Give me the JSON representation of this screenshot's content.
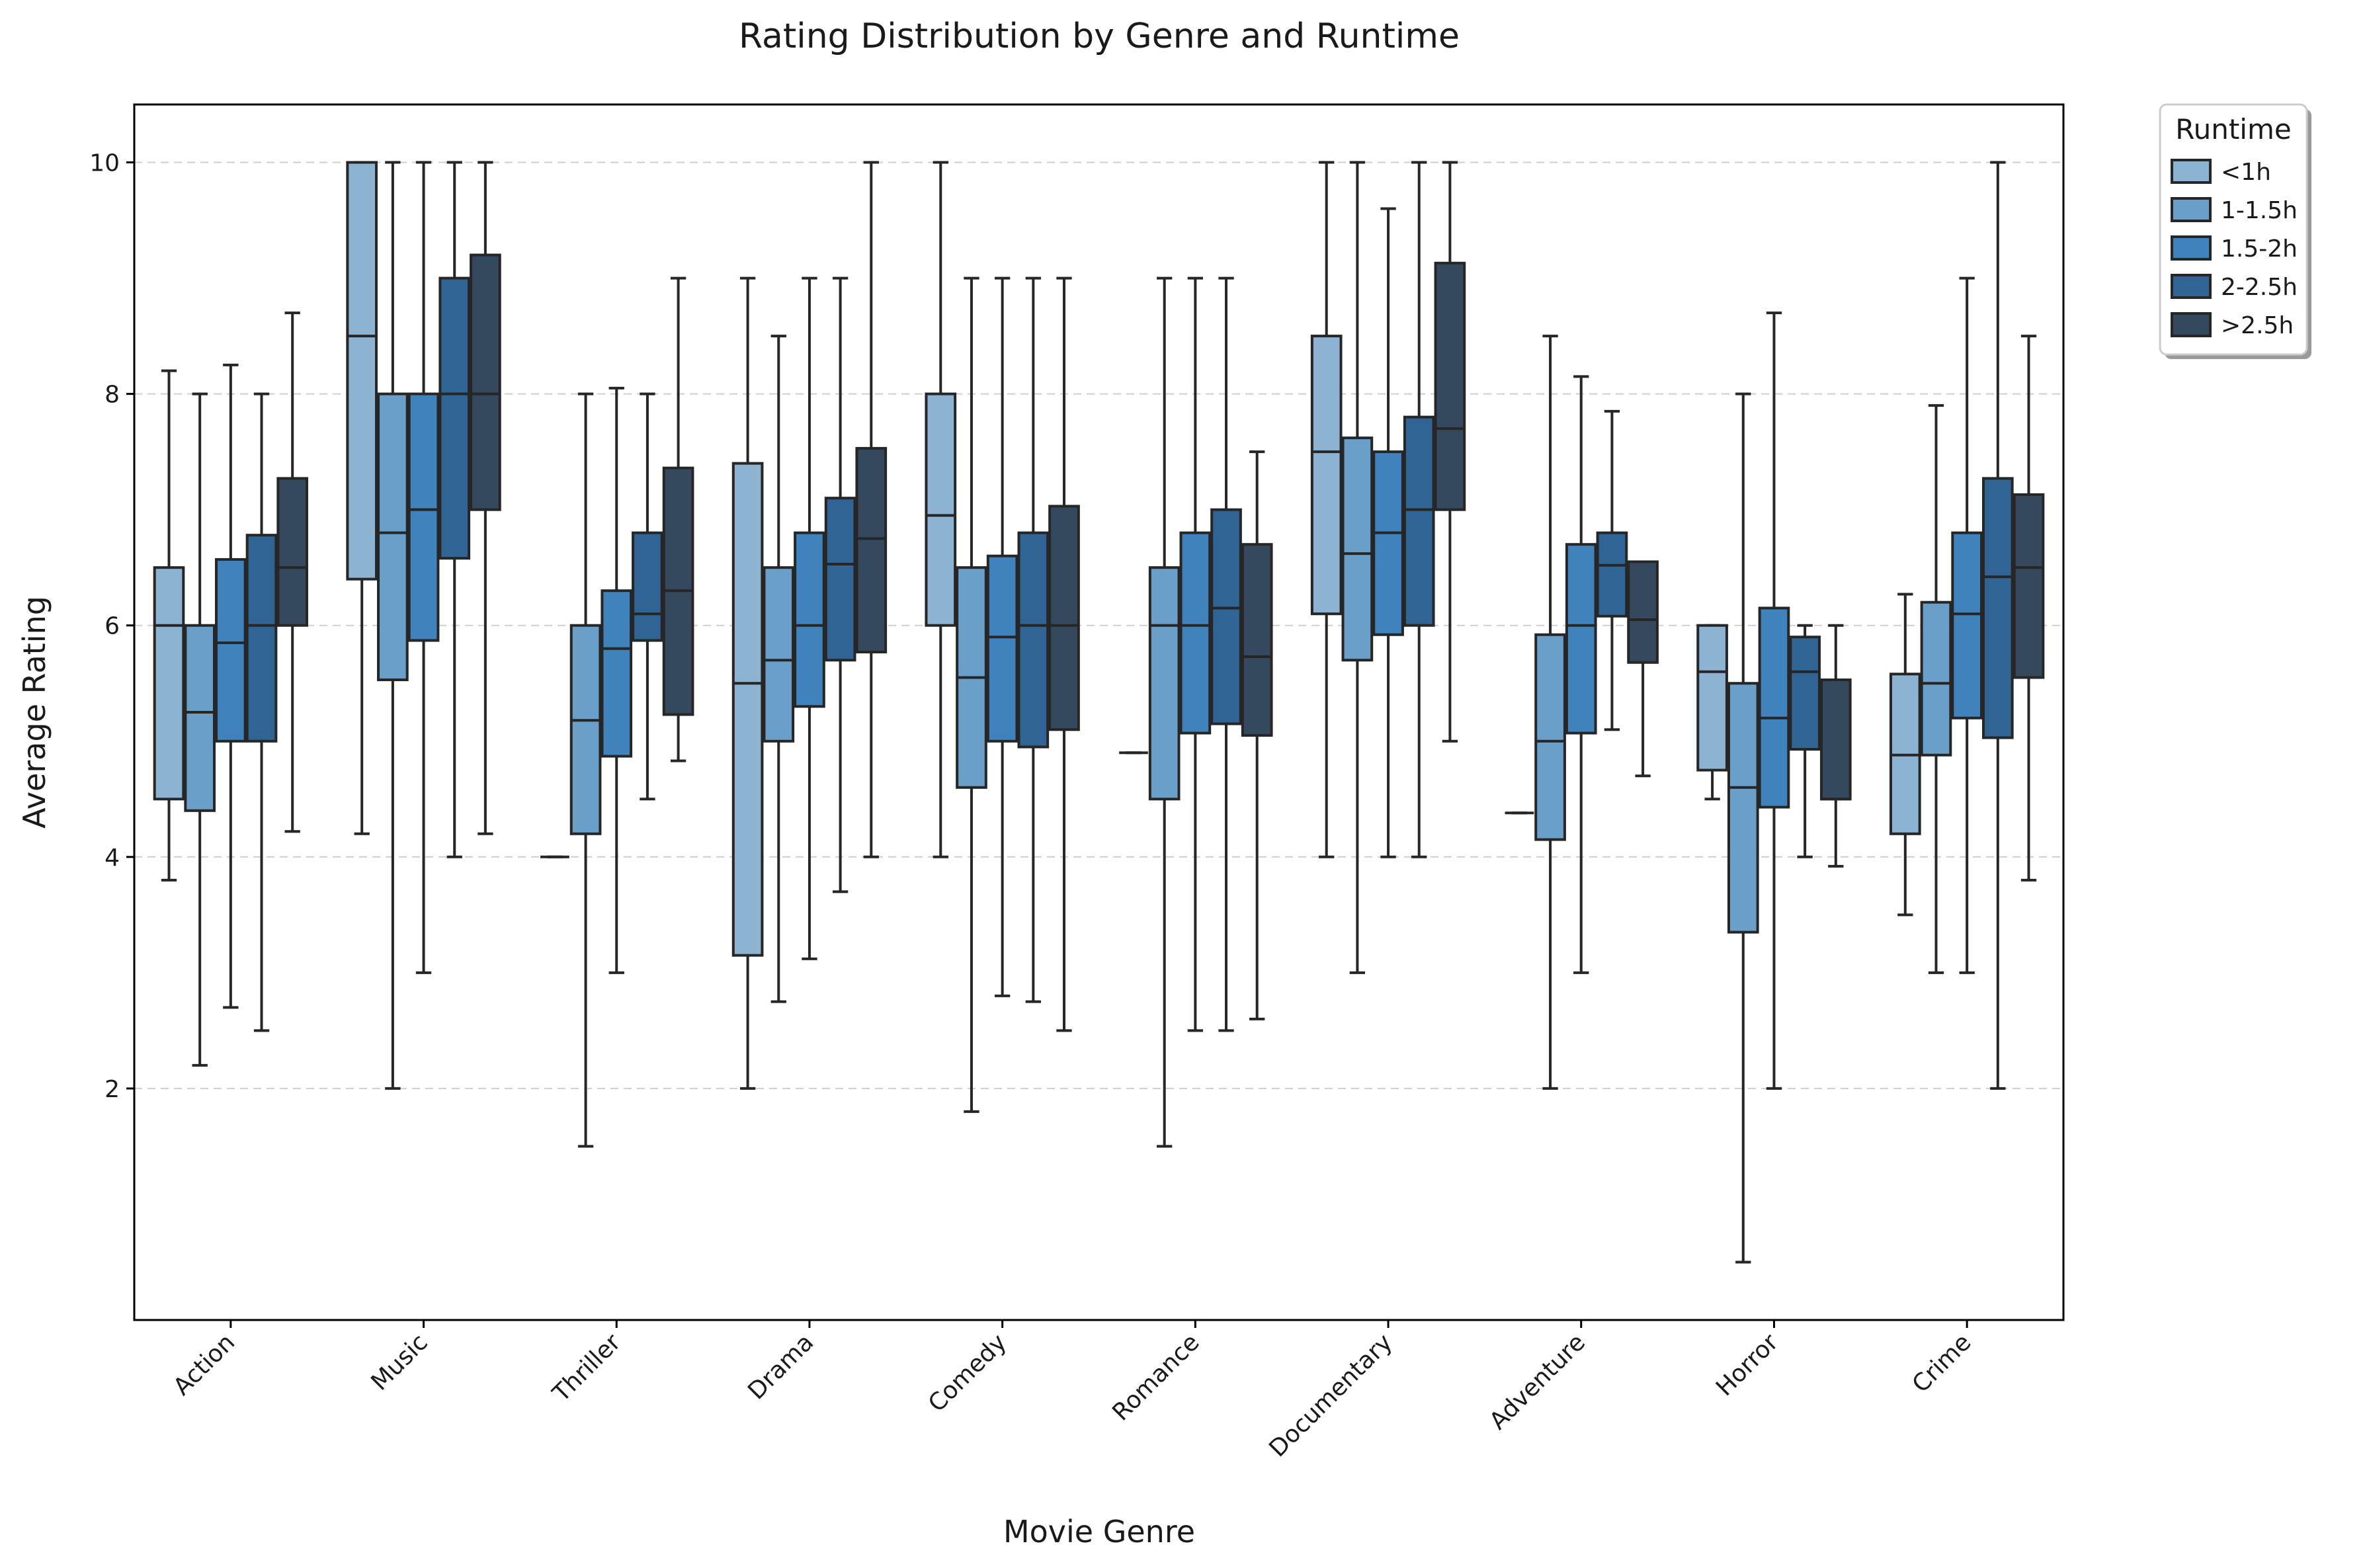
{
  "chart_data": {
    "type": "boxplot",
    "title": "Rating Distribution by Genre and Runtime",
    "xlabel": "Movie Genre",
    "ylabel": "Average Rating",
    "ylim": [
      0,
      10.5
    ],
    "yticks": [
      2,
      4,
      6,
      8,
      10
    ],
    "grid": "y-dashed",
    "legend": {
      "title": "Runtime",
      "placement": "outside-top-right"
    },
    "categories": [
      "Action",
      "Music",
      "Thriller",
      "Drama",
      "Comedy",
      "Romance",
      "Documentary",
      "Adventure",
      "Horror",
      "Crime"
    ],
    "series": [
      {
        "name": "<1h",
        "color": "#8db3d3",
        "boxes": [
          {
            "whislo": 3.8,
            "q1": 4.5,
            "med": 6.0,
            "q3": 6.5,
            "whishi": 8.2
          },
          {
            "whislo": 4.2,
            "q1": 6.4,
            "med": 8.5,
            "q3": 10.0,
            "whishi": 10.0
          },
          {
            "whislo": 4.0,
            "q1": 4.0,
            "med": 4.0,
            "q3": 4.0,
            "whishi": 4.0
          },
          {
            "whislo": 2.0,
            "q1": 3.15,
            "med": 5.5,
            "q3": 7.4,
            "whishi": 9.0
          },
          {
            "whislo": 4.0,
            "q1": 6.0,
            "med": 6.95,
            "q3": 8.0,
            "whishi": 10.0
          },
          {
            "whislo": 4.9,
            "q1": 4.9,
            "med": 4.9,
            "q3": 4.9,
            "whishi": 4.9
          },
          {
            "whislo": 4.0,
            "q1": 6.1,
            "med": 7.5,
            "q3": 8.5,
            "whishi": 10.0
          },
          {
            "whislo": 4.38,
            "q1": 4.38,
            "med": 4.38,
            "q3": 4.38,
            "whishi": 4.38
          },
          {
            "whislo": 4.5,
            "q1": 4.75,
            "med": 5.6,
            "q3": 6.0,
            "whishi": 6.0
          },
          {
            "whislo": 3.5,
            "q1": 4.2,
            "med": 4.88,
            "q3": 5.58,
            "whishi": 6.27
          }
        ]
      },
      {
        "name": "1-1.5h",
        "color": "#6a9fca",
        "boxes": [
          {
            "whislo": 2.2,
            "q1": 4.4,
            "med": 5.25,
            "q3": 6.0,
            "whishi": 8.0
          },
          {
            "whislo": 2.0,
            "q1": 5.53,
            "med": 6.8,
            "q3": 8.0,
            "whishi": 10.0
          },
          {
            "whislo": 1.5,
            "q1": 4.2,
            "med": 5.18,
            "q3": 6.0,
            "whishi": 8.0
          },
          {
            "whislo": 2.75,
            "q1": 5.0,
            "med": 5.7,
            "q3": 6.5,
            "whishi": 8.5
          },
          {
            "whislo": 1.8,
            "q1": 4.6,
            "med": 5.55,
            "q3": 6.5,
            "whishi": 9.0
          },
          {
            "whislo": 1.5,
            "q1": 4.5,
            "med": 6.0,
            "q3": 6.5,
            "whishi": 9.0
          },
          {
            "whislo": 3.0,
            "q1": 5.7,
            "med": 6.62,
            "q3": 7.62,
            "whishi": 10.0
          },
          {
            "whislo": 2.0,
            "q1": 4.15,
            "med": 5.0,
            "q3": 5.92,
            "whishi": 8.5
          },
          {
            "whislo": 0.5,
            "q1": 3.35,
            "med": 4.6,
            "q3": 5.5,
            "whishi": 8.0
          },
          {
            "whislo": 3.0,
            "q1": 4.88,
            "med": 5.5,
            "q3": 6.2,
            "whishi": 7.9
          }
        ]
      },
      {
        "name": "1.5-2h",
        "color": "#3f82bc",
        "boxes": [
          {
            "whislo": 2.7,
            "q1": 5.0,
            "med": 5.85,
            "q3": 6.57,
            "whishi": 8.25
          },
          {
            "whislo": 3.0,
            "q1": 5.87,
            "med": 7.0,
            "q3": 8.0,
            "whishi": 10.0
          },
          {
            "whislo": 3.0,
            "q1": 4.87,
            "med": 5.8,
            "q3": 6.3,
            "whishi": 8.05
          },
          {
            "whislo": 3.12,
            "q1": 5.3,
            "med": 6.0,
            "q3": 6.8,
            "whishi": 9.0
          },
          {
            "whislo": 2.8,
            "q1": 5.0,
            "med": 5.9,
            "q3": 6.6,
            "whishi": 9.0
          },
          {
            "whislo": 2.5,
            "q1": 5.07,
            "med": 6.0,
            "q3": 6.8,
            "whishi": 9.0
          },
          {
            "whislo": 4.0,
            "q1": 5.92,
            "med": 6.8,
            "q3": 7.5,
            "whishi": 9.6
          },
          {
            "whislo": 3.0,
            "q1": 5.07,
            "med": 6.0,
            "q3": 6.7,
            "whishi": 8.15
          },
          {
            "whislo": 2.0,
            "q1": 4.43,
            "med": 5.2,
            "q3": 6.15,
            "whishi": 8.7
          },
          {
            "whislo": 3.0,
            "q1": 5.2,
            "med": 6.1,
            "q3": 6.8,
            "whishi": 9.0
          }
        ]
      },
      {
        "name": "2-2.5h",
        "color": "#2f6494",
        "boxes": [
          {
            "whislo": 2.5,
            "q1": 5.0,
            "med": 6.0,
            "q3": 6.78,
            "whishi": 8.0
          },
          {
            "whislo": 4.0,
            "q1": 6.58,
            "med": 8.0,
            "q3": 9.0,
            "whishi": 10.0
          },
          {
            "whislo": 4.5,
            "q1": 5.87,
            "med": 6.1,
            "q3": 6.8,
            "whishi": 8.0
          },
          {
            "whislo": 3.7,
            "q1": 5.7,
            "med": 6.53,
            "q3": 7.1,
            "whishi": 9.0
          },
          {
            "whislo": 2.75,
            "q1": 4.95,
            "med": 6.0,
            "q3": 6.8,
            "whishi": 9.0
          },
          {
            "whislo": 2.5,
            "q1": 5.15,
            "med": 6.15,
            "q3": 7.0,
            "whishi": 9.0
          },
          {
            "whislo": 4.0,
            "q1": 6.0,
            "med": 7.0,
            "q3": 7.8,
            "whishi": 10.0
          },
          {
            "whislo": 5.1,
            "q1": 6.08,
            "med": 6.52,
            "q3": 6.8,
            "whishi": 7.85
          },
          {
            "whislo": 4.0,
            "q1": 4.93,
            "med": 5.6,
            "q3": 5.9,
            "whishi": 6.0
          },
          {
            "whislo": 2.0,
            "q1": 5.03,
            "med": 6.42,
            "q3": 7.27,
            "whishi": 10.0
          }
        ]
      },
      {
        "name": ">2.5h",
        "color": "#34495e",
        "boxes": [
          {
            "whislo": 4.22,
            "q1": 6.0,
            "med": 6.5,
            "q3": 7.27,
            "whishi": 8.7
          },
          {
            "whislo": 4.2,
            "q1": 7.0,
            "med": 8.0,
            "q3": 9.2,
            "whishi": 10.0
          },
          {
            "whislo": 4.83,
            "q1": 5.23,
            "med": 6.3,
            "q3": 7.36,
            "whishi": 9.0
          },
          {
            "whislo": 4.0,
            "q1": 5.77,
            "med": 6.75,
            "q3": 7.53,
            "whishi": 10.0
          },
          {
            "whislo": 2.5,
            "q1": 5.1,
            "med": 6.0,
            "q3": 7.03,
            "whishi": 9.0
          },
          {
            "whislo": 2.6,
            "q1": 5.05,
            "med": 5.73,
            "q3": 6.7,
            "whishi": 7.5
          },
          {
            "whislo": 5.0,
            "q1": 7.0,
            "med": 7.7,
            "q3": 9.13,
            "whishi": 10.0
          },
          {
            "whislo": 4.7,
            "q1": 5.68,
            "med": 6.05,
            "q3": 6.55,
            "whishi": 6.55
          },
          {
            "whislo": 3.92,
            "q1": 4.5,
            "med": 4.5,
            "q3": 5.53,
            "whishi": 6.0
          },
          {
            "whislo": 3.8,
            "q1": 5.55,
            "med": 6.5,
            "q3": 7.13,
            "whishi": 8.5
          }
        ]
      }
    ]
  }
}
